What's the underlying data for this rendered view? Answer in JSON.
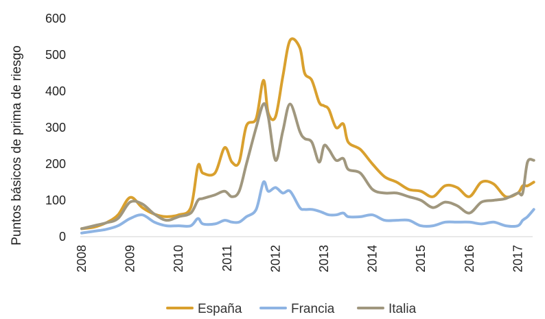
{
  "chart_data": {
    "type": "line",
    "ylabel": "Puntos básicos de prima de riesgo",
    "xlabel": "",
    "ylim": [
      0,
      600
    ],
    "yticks": [
      0,
      100,
      200,
      300,
      400,
      500,
      600
    ],
    "xlim": [
      2008,
      2017.33
    ],
    "xticks": [
      "2008",
      "2009",
      "2010",
      "2011",
      "2012",
      "2013",
      "2014",
      "2015",
      "2016",
      "2017"
    ],
    "grid": false,
    "legend_position": "bottom",
    "x": [
      2008.0,
      2008.25,
      2008.5,
      2008.75,
      2009.0,
      2009.25,
      2009.5,
      2009.75,
      2010.0,
      2010.25,
      2010.4,
      2010.5,
      2010.75,
      2010.95,
      2011.1,
      2011.25,
      2011.4,
      2011.6,
      2011.75,
      2011.85,
      2012.0,
      2012.15,
      2012.3,
      2012.5,
      2012.6,
      2012.75,
      2012.9,
      2013.0,
      2013.1,
      2013.25,
      2013.4,
      2013.5,
      2013.75,
      2014.0,
      2014.25,
      2014.5,
      2014.75,
      2015.0,
      2015.25,
      2015.5,
      2015.75,
      2016.0,
      2016.25,
      2016.5,
      2016.75,
      2017.0,
      2017.1,
      2017.2,
      2017.33
    ],
    "series": [
      {
        "name": "España",
        "color": "#D9A02E",
        "values": [
          22,
          26,
          38,
          60,
          108,
          80,
          62,
          55,
          60,
          80,
          195,
          175,
          175,
          245,
          205,
          205,
          305,
          325,
          430,
          340,
          330,
          440,
          540,
          520,
          450,
          430,
          370,
          360,
          350,
          300,
          310,
          260,
          240,
          200,
          165,
          150,
          130,
          125,
          110,
          140,
          135,
          110,
          150,
          145,
          110,
          120,
          140,
          140,
          150
        ]
      },
      {
        "name": "Francia",
        "color": "#8EB4E3",
        "values": [
          10,
          15,
          20,
          30,
          50,
          60,
          40,
          30,
          30,
          30,
          50,
          35,
          35,
          45,
          40,
          40,
          55,
          75,
          150,
          125,
          135,
          120,
          125,
          80,
          75,
          75,
          70,
          65,
          60,
          60,
          65,
          55,
          55,
          60,
          45,
          45,
          45,
          30,
          30,
          40,
          40,
          40,
          35,
          40,
          30,
          30,
          45,
          55,
          75
        ]
      },
      {
        "name": "Italia",
        "color": "#A0977E",
        "values": [
          22,
          30,
          38,
          50,
          95,
          90,
          62,
          45,
          55,
          65,
          100,
          105,
          115,
          125,
          110,
          125,
          200,
          300,
          365,
          330,
          210,
          290,
          365,
          290,
          270,
          260,
          205,
          250,
          240,
          210,
          215,
          185,
          175,
          130,
          120,
          120,
          110,
          100,
          80,
          95,
          85,
          65,
          95,
          100,
          105,
          120,
          120,
          205,
          210
        ]
      }
    ]
  }
}
